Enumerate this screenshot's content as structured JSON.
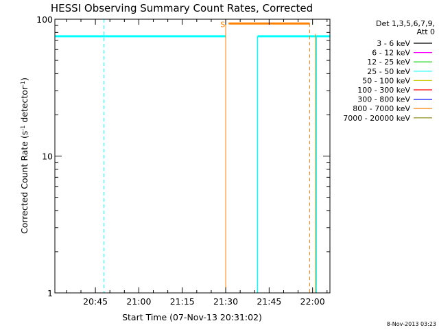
{
  "chart_data": {
    "type": "line",
    "title": "HESSI Observing Summary Count Rates, Corrected",
    "xlabel": "Start Time (07-Nov-13 20:31:02)",
    "ylabel_prefix": "Corrected Count Rate (s",
    "ylabel_sup1": "-1",
    "ylabel_mid": " detector",
    "ylabel_sup2": "-1",
    "ylabel_suffix": ")",
    "x_tick_labels": [
      "20:45",
      "21:00",
      "21:15",
      "21:30",
      "21:45",
      "22:00"
    ],
    "x_tick_minutes": [
      45,
      60,
      75,
      90,
      105,
      120
    ],
    "x_range_minutes": [
      31,
      126
    ],
    "y_scale": "log",
    "y_range": [
      1,
      100
    ],
    "y_tick_labels": [
      "1",
      "10",
      "100"
    ],
    "y_tick_values": [
      1,
      10,
      100
    ],
    "legend": {
      "header_line1": "Det 1,3,5,6,7,9,",
      "header_line2": "Att 0",
      "placement": "right"
    },
    "footer": "8-Nov-2013 03:23",
    "saa_marker": "S",
    "orbit_day_bars": [
      [
        31,
        90
      ],
      [
        101,
        126
      ]
    ],
    "saa_bar": [
      91,
      119
    ],
    "night_lines": [
      [
        90,
        101
      ]
    ],
    "dashed_lines_cyan": [
      48,
      126
    ],
    "dashed_line_orange": 119,
    "series": [
      {
        "name": "3 - 6 keV",
        "color": "#000000"
      },
      {
        "name": "6 - 12 keV",
        "color": "#ff00ff"
      },
      {
        "name": "12 - 25 keV",
        "color": "#00cc00"
      },
      {
        "name": "25 - 50 keV",
        "color": "#00ffff"
      },
      {
        "name": "50 - 100 keV",
        "color": "#cccc00"
      },
      {
        "name": "100 - 300 keV",
        "color": "#ff0000"
      },
      {
        "name": "300 - 800 keV",
        "color": "#0000ff"
      },
      {
        "name": "800 - 7000 keV",
        "color": "#ff8000"
      },
      {
        "name": "7000 - 20000 keV",
        "color": "#808000"
      }
    ]
  }
}
